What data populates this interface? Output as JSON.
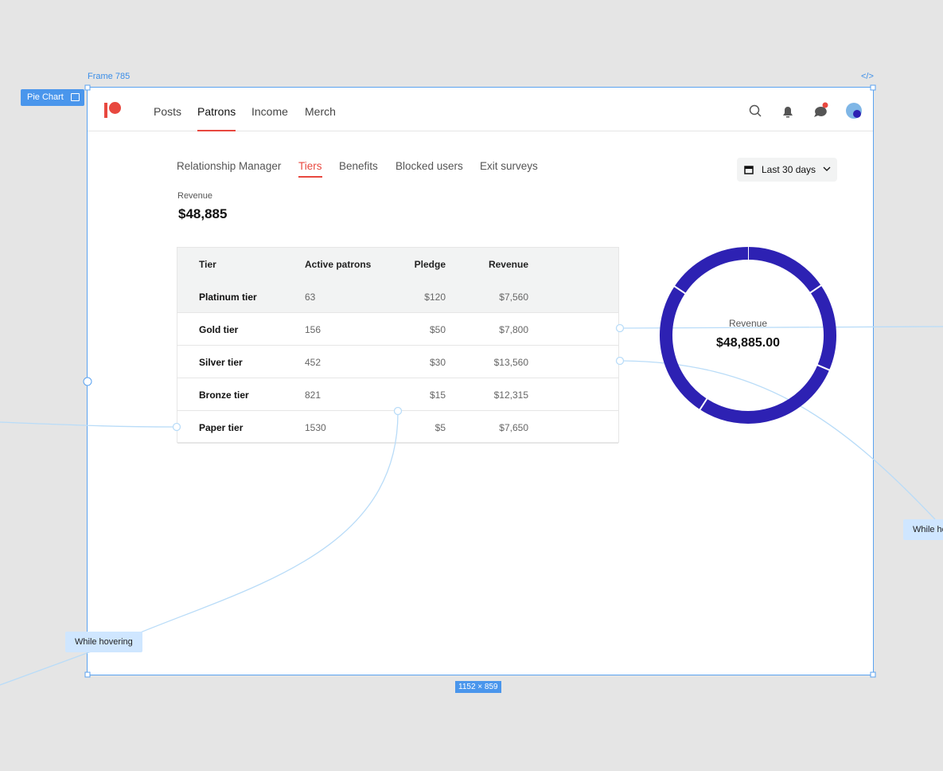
{
  "frame": {
    "name": "Frame 785",
    "component": "Pie Chart",
    "code_icon": "</>",
    "size": "1152 × 859"
  },
  "nav": {
    "items": [
      "Posts",
      "Patrons",
      "Income",
      "Merch"
    ],
    "active": 1
  },
  "tabs": {
    "items": [
      "Relationship Manager",
      "Tiers",
      "Benefits",
      "Blocked users",
      "Exit surveys"
    ],
    "active": 1
  },
  "date_filter": "Last 30 days",
  "summary": {
    "label": "Revenue",
    "value": "$48,885"
  },
  "table": {
    "headers": [
      "Tier",
      "Active patrons",
      "Pledge",
      "Revenue"
    ],
    "rows": [
      [
        "63",
        "$120"
      ],
      [
        "156",
        "$50"
      ],
      [
        "452",
        "$30"
      ],
      [
        "821",
        "$15"
      ],
      [
        "1530",
        "$5"
      ]
    ]
  },
  "chart_data": {
    "type": "pie",
    "title": "Revenue",
    "total_label": "$48,885.00",
    "categories": [
      "Platinum tier",
      "Gold tier",
      "Silver tier",
      "Bronze tier",
      "Paper tier"
    ],
    "values": [
      7560,
      7800,
      13560,
      12315,
      7650
    ],
    "value_labels": [
      "$7,560",
      "$7,800",
      "$13,560",
      "$12,315",
      "$7,650"
    ],
    "color": "#2d21b3"
  },
  "annotations": [
    "While hovering",
    "While hovering"
  ]
}
